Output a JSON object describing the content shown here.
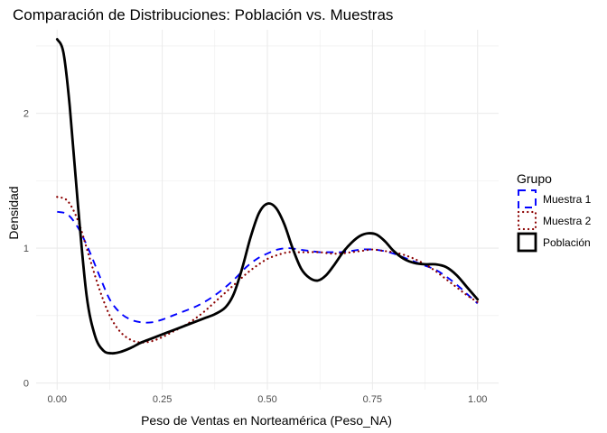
{
  "chart_data": {
    "type": "line",
    "title": "Comparación de Distribuciones: Población vs. Muestras",
    "xlabel": "Peso de Ventas en Norteamérica (Peso_NA)",
    "ylabel": "Densidad",
    "xlim": [
      -0.05,
      1.05
    ],
    "ylim": [
      -0.05,
      2.62
    ],
    "x_ticks": [
      0,
      0.25,
      0.5,
      0.75,
      1
    ],
    "x_tick_labels": [
      "0.00",
      "0.25",
      "0.50",
      "0.75",
      "1.00"
    ],
    "y_ticks": [
      0,
      1,
      2
    ],
    "y_tick_labels": [
      "0",
      "1",
      "2"
    ],
    "grid": true,
    "legend": {
      "title": "Grupo",
      "position": "right"
    },
    "series": [
      {
        "name": "Muestra 1",
        "color": "#0000ff",
        "linetype": "dashed",
        "x": [
          0,
          0.025,
          0.05,
          0.075,
          0.1,
          0.125,
          0.15,
          0.175,
          0.2,
          0.225,
          0.25,
          0.275,
          0.3,
          0.325,
          0.35,
          0.375,
          0.4,
          0.425,
          0.45,
          0.475,
          0.5,
          0.525,
          0.55,
          0.575,
          0.6,
          0.625,
          0.65,
          0.675,
          0.7,
          0.725,
          0.75,
          0.775,
          0.8,
          0.825,
          0.85,
          0.875,
          0.9,
          0.925,
          0.95,
          0.975,
          1
        ],
        "y": [
          1.27,
          1.25,
          1.15,
          0.99,
          0.8,
          0.62,
          0.52,
          0.47,
          0.45,
          0.45,
          0.47,
          0.5,
          0.53,
          0.56,
          0.6,
          0.65,
          0.71,
          0.78,
          0.86,
          0.92,
          0.96,
          0.99,
          1.0,
          0.99,
          0.98,
          0.97,
          0.97,
          0.97,
          0.98,
          0.99,
          0.99,
          0.98,
          0.96,
          0.93,
          0.9,
          0.87,
          0.84,
          0.79,
          0.73,
          0.66,
          0.59
        ]
      },
      {
        "name": "Muestra 2",
        "color": "#8b0000",
        "linetype": "dotted",
        "x": [
          0,
          0.025,
          0.05,
          0.075,
          0.1,
          0.125,
          0.15,
          0.175,
          0.2,
          0.225,
          0.25,
          0.275,
          0.3,
          0.325,
          0.35,
          0.375,
          0.4,
          0.425,
          0.45,
          0.475,
          0.5,
          0.525,
          0.55,
          0.575,
          0.6,
          0.625,
          0.65,
          0.675,
          0.7,
          0.725,
          0.75,
          0.775,
          0.8,
          0.825,
          0.85,
          0.875,
          0.9,
          0.925,
          0.95,
          0.975,
          1
        ],
        "y": [
          1.38,
          1.35,
          1.2,
          0.95,
          0.7,
          0.5,
          0.38,
          0.32,
          0.3,
          0.31,
          0.34,
          0.38,
          0.42,
          0.47,
          0.53,
          0.6,
          0.67,
          0.74,
          0.81,
          0.87,
          0.92,
          0.95,
          0.97,
          0.97,
          0.97,
          0.97,
          0.96,
          0.96,
          0.97,
          0.98,
          0.99,
          0.98,
          0.97,
          0.95,
          0.92,
          0.88,
          0.83,
          0.77,
          0.71,
          0.65,
          0.6
        ]
      },
      {
        "name": "Población",
        "color": "#000000",
        "linetype": "solid",
        "x": [
          0,
          0.015,
          0.03,
          0.05,
          0.07,
          0.09,
          0.11,
          0.13,
          0.15,
          0.175,
          0.2,
          0.225,
          0.25,
          0.275,
          0.3,
          0.325,
          0.35,
          0.375,
          0.4,
          0.42,
          0.44,
          0.46,
          0.48,
          0.5,
          0.52,
          0.54,
          0.56,
          0.58,
          0.6,
          0.62,
          0.64,
          0.66,
          0.68,
          0.7,
          0.72,
          0.74,
          0.76,
          0.78,
          0.8,
          0.825,
          0.85,
          0.875,
          0.9,
          0.925,
          0.95,
          0.975,
          1
        ],
        "y": [
          2.55,
          2.45,
          2.05,
          1.3,
          0.65,
          0.35,
          0.24,
          0.22,
          0.23,
          0.26,
          0.3,
          0.33,
          0.36,
          0.39,
          0.42,
          0.45,
          0.48,
          0.51,
          0.56,
          0.66,
          0.85,
          1.08,
          1.26,
          1.33,
          1.3,
          1.18,
          1.0,
          0.85,
          0.78,
          0.76,
          0.8,
          0.88,
          0.97,
          1.04,
          1.09,
          1.11,
          1.1,
          1.05,
          0.98,
          0.92,
          0.89,
          0.88,
          0.88,
          0.86,
          0.8,
          0.71,
          0.62
        ]
      }
    ]
  }
}
